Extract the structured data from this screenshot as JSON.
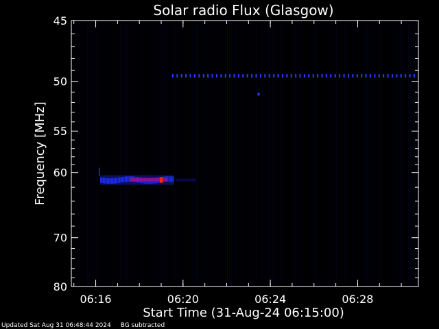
{
  "chart_data": {
    "type": "heatmap",
    "title": "Solar radio Flux (Glasgow)",
    "xlabel": "Start Time (31-Aug-24 06:15:00)",
    "ylabel": "Frequency [MHz]",
    "x_tick_labels": [
      "06:16",
      "06:20",
      "06:24",
      "06:28"
    ],
    "y_tick_labels": [
      "45",
      "50",
      "55",
      "60",
      "70",
      "80"
    ],
    "y_tick_values": [
      45,
      50,
      55,
      60,
      70,
      80
    ],
    "y_scale": "reciprocal",
    "y_inverted": true,
    "xlim": [
      "06:14:53",
      "06:30:47"
    ],
    "ylim": [
      45,
      80
    ],
    "colormap": "blue-red",
    "colors": {
      "background": "#000000",
      "low": "#0a0a5a",
      "mid": "#1f2fff",
      "high": "#ff2a00",
      "axes": "#ffffff"
    },
    "features": [
      {
        "name": "type III burst lane",
        "t_start": "06:16:12",
        "t_end": "06:19:35",
        "freq_mhz": 61.0,
        "peak_time": "06:19:00",
        "intensity": "high"
      },
      {
        "name": "narrowband interference line",
        "t_start": "06:19:30",
        "t_end": "06:30:45",
        "freq_mhz": 49.5,
        "intensity": "medium"
      }
    ]
  },
  "footer": {
    "updated": "Updated Sat Aug 31 06:48:44 2024",
    "mode": "BG subtracted"
  }
}
